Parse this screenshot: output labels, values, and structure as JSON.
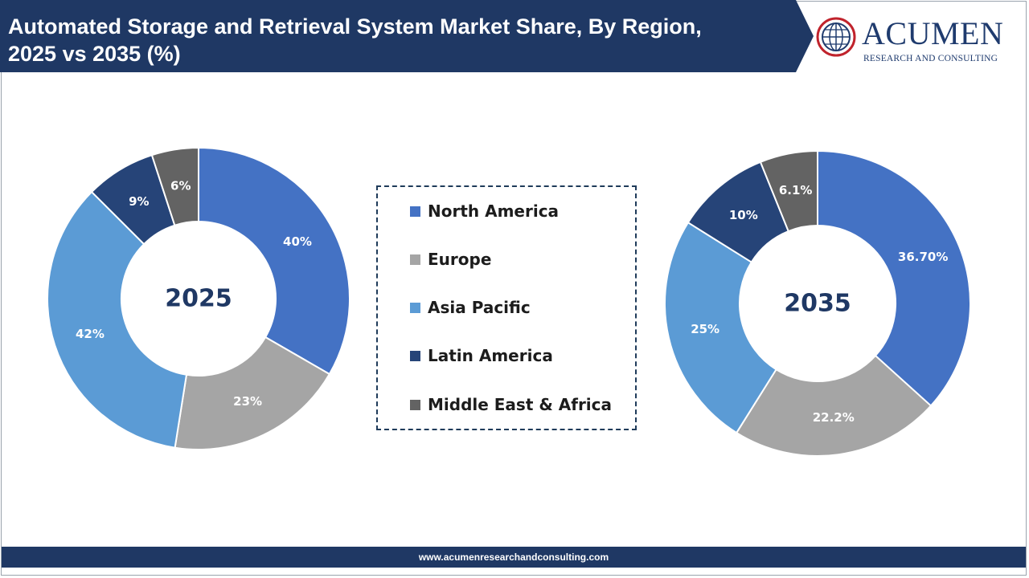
{
  "header": {
    "title_line1": "Automated Storage and Retrieval System Market Share, By Region,",
    "title_line2": "2025 vs 2035 (%)",
    "banner_color": "#1f3864"
  },
  "logo": {
    "name": "ACUMEN",
    "tagline": "RESEARCH AND CONSULTING",
    "icon": "globe-icon"
  },
  "colors": {
    "North America": "#4472c4",
    "Europe": "#a5a5a5",
    "Asia Pacific": "#5b9bd5",
    "Latin America": "#264478",
    "Middle East & Africa": "#636363"
  },
  "legend": {
    "items": [
      "North America",
      "Europe",
      "Asia Pacific",
      "Latin America",
      "Middle East & Africa"
    ]
  },
  "chart_data": [
    {
      "type": "pie",
      "donut": true,
      "center_label": "2025",
      "categories": [
        "North America",
        "Europe",
        "Asia Pacific",
        "Latin America",
        "Middle East & Africa"
      ],
      "values": [
        40,
        23,
        42,
        9,
        6
      ],
      "data_labels": [
        "40%",
        "23%",
        "42%",
        "9%",
        "6%"
      ]
    },
    {
      "type": "pie",
      "donut": true,
      "center_label": "2035",
      "categories": [
        "North America",
        "Europe",
        "Asia Pacific",
        "Latin America",
        "Middle East & Africa"
      ],
      "values": [
        36.7,
        22.2,
        25,
        10,
        6.1
      ],
      "data_labels": [
        "36.70%",
        "22.2%",
        "25%",
        "10%",
        "6.1%"
      ]
    }
  ],
  "footer": {
    "url": "www.acumenresearchandconsulting.com"
  }
}
